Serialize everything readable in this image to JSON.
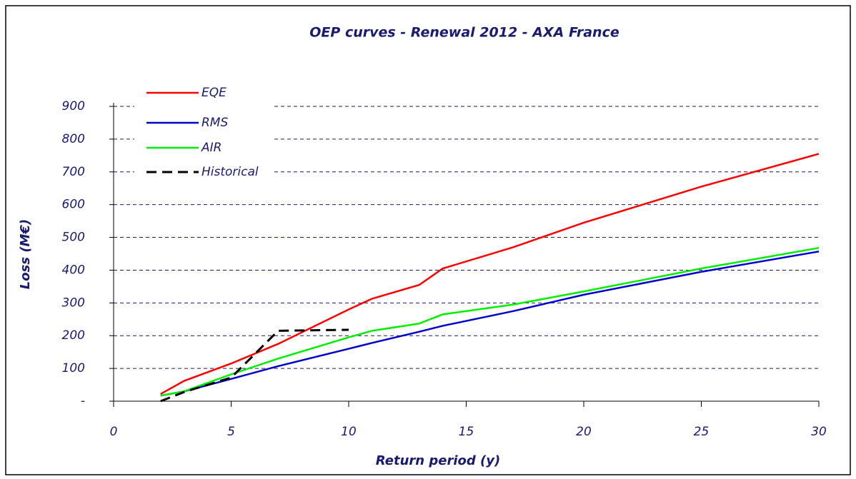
{
  "chart_data": {
    "type": "line",
    "title": "OEP curves - Renewal 2012 - AXA France",
    "x_label": "Return period (y)",
    "y_label": "Loss (M€)",
    "x": [
      2,
      3,
      5,
      7,
      10,
      11,
      13,
      14,
      17,
      20,
      25,
      30
    ],
    "series": [
      {
        "name": "EQE",
        "color": "#ff0000",
        "dash": false,
        "values": [
          22,
          62,
          115,
          175,
          280,
          313,
          355,
          405,
          470,
          545,
          655,
          755
        ]
      },
      {
        "name": "RMS",
        "color": "#0000cc",
        "dash": false,
        "values": [
          17,
          30,
          68,
          107,
          160,
          178,
          212,
          230,
          275,
          325,
          395,
          457
        ]
      },
      {
        "name": "AIR",
        "color": "#00ee00",
        "dash": false,
        "values": [
          17,
          30,
          82,
          130,
          195,
          215,
          237,
          265,
          295,
          335,
          405,
          468
        ]
      },
      {
        "name": "Historical",
        "color": "#000000",
        "dash": true,
        "values": [
          0,
          28,
          72,
          215,
          218,
          null,
          null,
          null,
          null,
          null,
          null,
          null
        ]
      }
    ],
    "xlim": [
      0,
      30
    ],
    "xticks": [
      0,
      5,
      10,
      15,
      20,
      25,
      30
    ],
    "ylim": [
      0,
      900
    ],
    "yticks": [
      {
        "value": 0,
        "label": "-"
      },
      100,
      200,
      300,
      400,
      500,
      600,
      700,
      800,
      900
    ],
    "grid": true,
    "legend": "upper left"
  }
}
